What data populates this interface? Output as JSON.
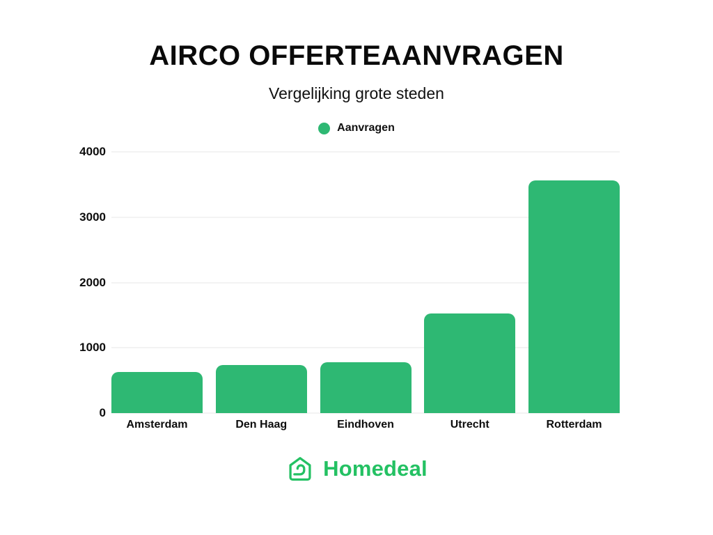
{
  "page": {
    "background": "#ffffff"
  },
  "header": {
    "title": "AIRCO OFFERTEAANVRAGEN",
    "subtitle": "Vergelijking grote steden"
  },
  "legend": {
    "label": "Aanvragen",
    "dot_color": "#2eb873"
  },
  "chart_data": {
    "type": "bar",
    "title": "AIRCO OFFERTEAANVRAGEN",
    "subtitle": "Vergelijking grote steden",
    "series_name": "Aanvragen",
    "categories": [
      "Amsterdam",
      "Den Haag",
      "Eindhoven",
      "Utrecht",
      "Rotterdam"
    ],
    "values": [
      630,
      735,
      775,
      1530,
      3560
    ],
    "xlabel": "",
    "ylabel": "",
    "ylim": [
      0,
      4000
    ],
    "yticks": [
      0,
      1000,
      2000,
      3000,
      4000
    ],
    "grid": true,
    "legend_position": "top-center",
    "bar_color": "#2eb873",
    "grid_color": "#f3f3f3",
    "text_color": "#0d0d0d"
  },
  "footer": {
    "brand": "Homedeal",
    "brand_color": "#24c163",
    "icon": "house-wrench-icon"
  }
}
